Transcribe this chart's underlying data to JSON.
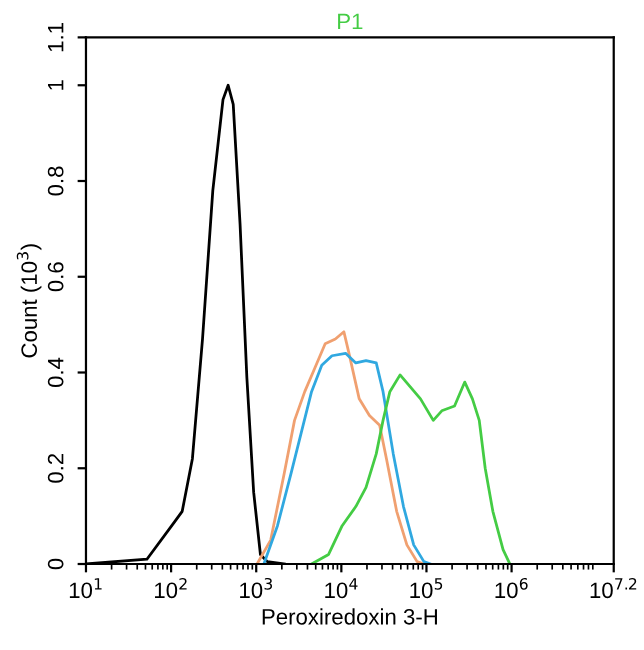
{
  "chart_data": {
    "type": "line",
    "title": "P1",
    "xlabel": "Peroxiredoxin 3-H",
    "ylabel": "Count (10$^{3}$)",
    "log": "x",
    "xlim": [
      10,
      15848932
    ],
    "xticks": [
      {
        "value": 10,
        "label": "10$^{1}$"
      },
      {
        "value": 100,
        "label": "10$^{2}$"
      },
      {
        "value": 1000,
        "label": "10$^{3}$"
      },
      {
        "value": 10000,
        "label": "10$^{4}$"
      },
      {
        "value": 100000,
        "label": "10$^{5}$"
      },
      {
        "value": 1000000,
        "label": "10$^{6}$"
      },
      {
        "value": 15848932,
        "label": "10$^{7.2}$"
      }
    ],
    "ylim": [
      0,
      1.1
    ],
    "yticks": [
      0,
      0.2,
      0.4,
      0.6,
      0.8,
      1,
      1.1
    ],
    "grid": false,
    "legend": false,
    "marker": "none",
    "line_style": "solid",
    "series": [
      {
        "color": "#000000",
        "x": [
          10,
          52,
          112,
          135,
          178,
          234,
          309,
          407,
          468,
          537,
          646,
          776,
          933,
          1120,
          1350,
          2140
        ],
        "values": [
          0,
          0.01,
          0.09,
          0.11,
          0.22,
          0.47,
          0.78,
          0.97,
          1.0,
          0.96,
          0.71,
          0.39,
          0.15,
          0.02,
          0.005,
          0
        ]
      },
      {
        "color": "#f0a070",
        "x": [
          1023,
          1479,
          2138,
          2818,
          3715,
          4898,
          6457,
          8511,
          10720,
          12300,
          16220,
          21380,
          28180,
          33880,
          44670,
          58880,
          77620,
          93300
        ],
        "values": [
          0,
          0.05,
          0.19,
          0.3,
          0.36,
          0.41,
          0.46,
          0.47,
          0.485,
          0.44,
          0.345,
          0.31,
          0.29,
          0.22,
          0.11,
          0.04,
          0.005,
          0
        ]
      },
      {
        "color": "#30a8e0",
        "x": [
          1230,
          1778,
          2570,
          3388,
          4467,
          5888,
          7762,
          11220,
          14790,
          19500,
          25700,
          30900,
          40740,
          53700,
          70800,
          93300,
          112200
        ],
        "values": [
          0,
          0.08,
          0.19,
          0.275,
          0.36,
          0.415,
          0.435,
          0.44,
          0.42,
          0.425,
          0.42,
          0.36,
          0.23,
          0.12,
          0.04,
          0.005,
          0
        ]
      },
      {
        "color": "#44cc44",
        "x": [
          4467,
          7080,
          10230,
          14790,
          19500,
          25700,
          30900,
          37150,
          48980,
          64570,
          85110,
          120200,
          151400,
          213800,
          281800,
          346700,
          416900,
          489800,
          602600,
          794300,
          955000
        ],
        "values": [
          0,
          0.02,
          0.08,
          0.12,
          0.16,
          0.23,
          0.3,
          0.36,
          0.395,
          0.37,
          0.345,
          0.3,
          0.32,
          0.33,
          0.38,
          0.345,
          0.3,
          0.2,
          0.11,
          0.03,
          0
        ]
      }
    ]
  }
}
